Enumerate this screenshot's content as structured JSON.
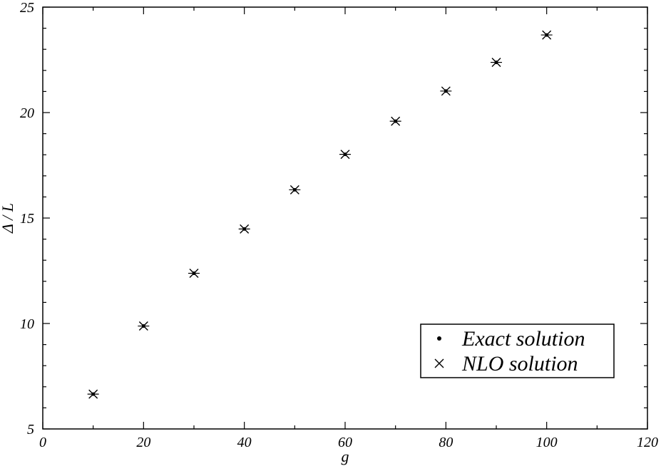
{
  "chart_data": {
    "type": "scatter",
    "xlabel": "g",
    "ylabel": "Δ / L",
    "xlim": [
      0,
      120
    ],
    "ylim": [
      5,
      25
    ],
    "xticks": [
      "0",
      "20",
      "40",
      "60",
      "80",
      "100",
      "120"
    ],
    "yticks": [
      "5",
      "10",
      "15",
      "20",
      "25"
    ],
    "grid": false,
    "legend_position": "lower-right",
    "series": [
      {
        "name": "Exact solution",
        "marker": "dot",
        "x": [
          10,
          20,
          30,
          40,
          50,
          60,
          70,
          80,
          90,
          100
        ],
        "y": [
          6.65,
          9.88,
          12.38,
          14.48,
          16.34,
          18.02,
          19.59,
          21.02,
          22.38,
          23.68
        ]
      },
      {
        "name": "NLO  solution",
        "marker": "cross",
        "x": [
          10,
          20,
          30,
          40,
          50,
          60,
          70,
          80,
          90,
          100
        ],
        "y": [
          6.65,
          9.88,
          12.38,
          14.48,
          16.34,
          18.02,
          19.59,
          21.02,
          22.38,
          23.68
        ]
      }
    ]
  }
}
